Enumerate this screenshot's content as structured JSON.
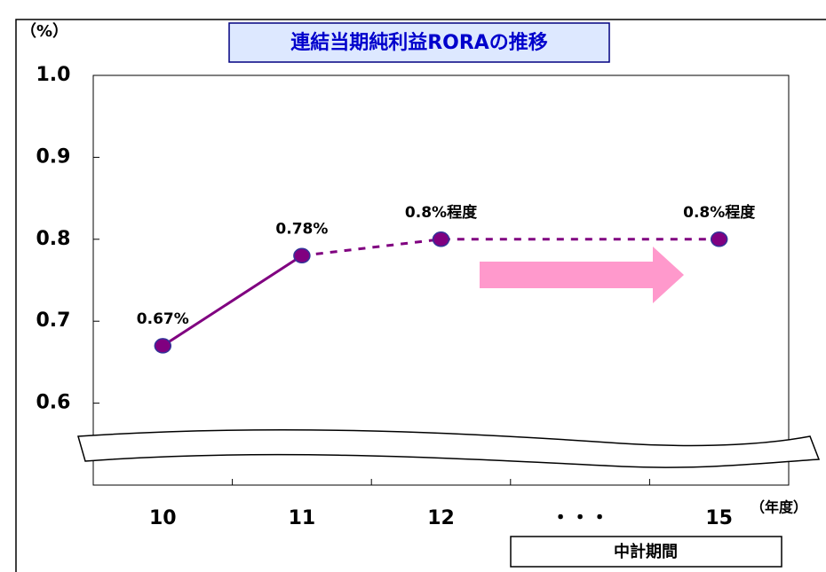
{
  "title": "連結当期純利益RORAの推移",
  "unit": "（%）",
  "x_unit": "（年度）",
  "period_label": "中計期間",
  "chart_data": {
    "type": "line",
    "categories": [
      "10",
      "11",
      "12",
      "15"
    ],
    "ellipsis": "・・・",
    "values": [
      0.67,
      0.78,
      0.8,
      0.8
    ],
    "value_labels": [
      "0.67%",
      "0.78%",
      "0.8%程度",
      "0.8%程度"
    ],
    "series": [
      {
        "color": "#800080",
        "style": "solid",
        "values": [
          0.67,
          0.78,
          null,
          null
        ]
      },
      {
        "color": "#800080",
        "style": "dashed",
        "values": [
          null,
          0.78,
          0.8,
          0.8
        ]
      }
    ],
    "marker_color": "#800080",
    "ylim": [
      0.5,
      1.0
    ],
    "yticks": [
      0.6,
      0.7,
      0.8,
      0.9,
      {
        "value": 1,
        "label": "1.0"
      }
    ]
  }
}
